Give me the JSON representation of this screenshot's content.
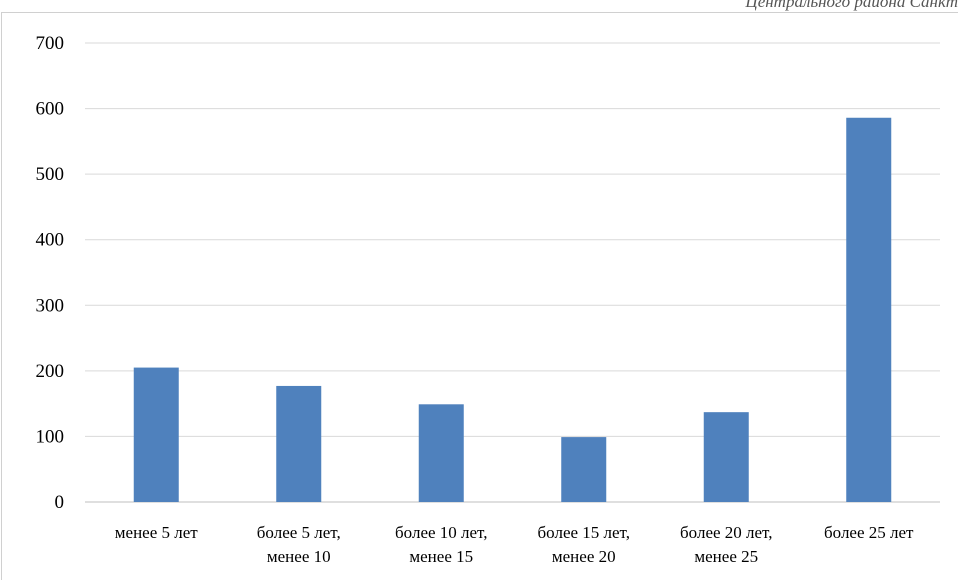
{
  "header": {
    "caption": "Центрального района Санкт"
  },
  "chart_data": {
    "type": "bar",
    "title": "",
    "xlabel": "",
    "ylabel": "",
    "categories": [
      [
        "менее 5 лет"
      ],
      [
        "более 5 лет,",
        "менее 10"
      ],
      [
        "более 10 лет,",
        "менее 15"
      ],
      [
        "более 15 лет,",
        "менее 20"
      ],
      [
        "более 20 лет,",
        "менее 25"
      ],
      [
        "более 25 лет"
      ]
    ],
    "values": [
      205,
      177,
      149,
      99,
      137,
      586
    ],
    "ylim": [
      0,
      700
    ],
    "yticks": [
      0,
      100,
      200,
      300,
      400,
      500,
      600,
      700
    ],
    "grid": true,
    "legend": "none",
    "colors": {
      "bar": "#4f81bd",
      "grid": "#d9d9d9",
      "axis": "#bfbfbf"
    }
  }
}
